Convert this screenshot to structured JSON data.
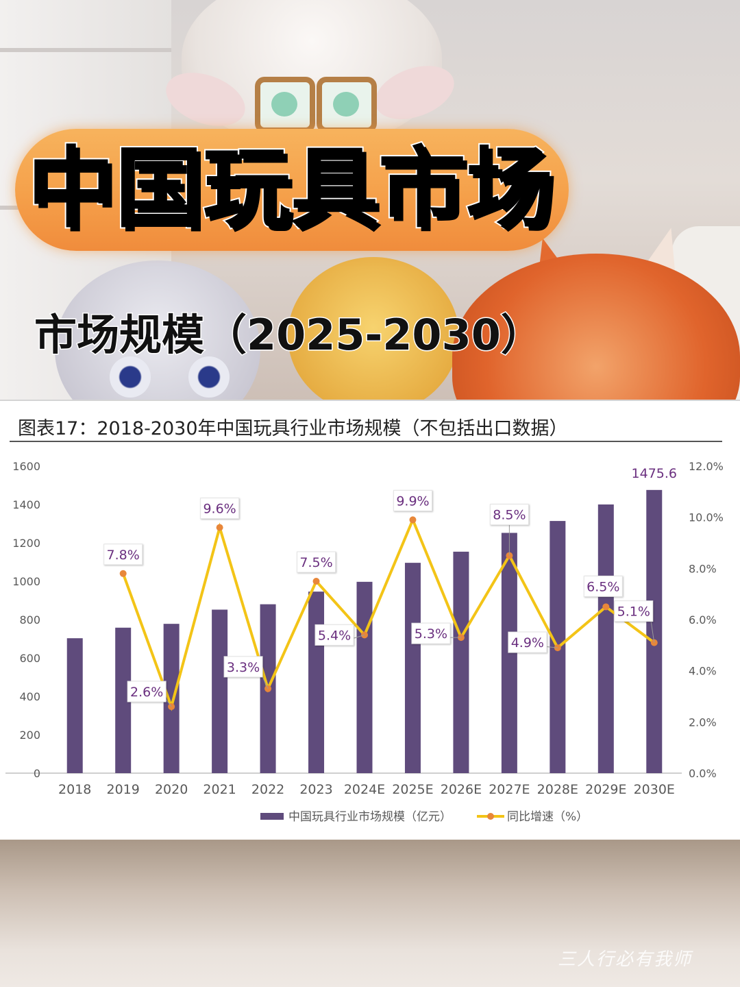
{
  "header": {
    "main_title": "中国玩具市场",
    "subtitle": "市场规模（2025-2030）"
  },
  "watermark": "三人行必有我师",
  "colors": {
    "bar": "#5f4b7c",
    "line": "#f3c417",
    "marker": "#e8873a",
    "label_text": "#6a2f7f",
    "title_pill": "#f5a04a"
  },
  "chart_data": {
    "type": "bar",
    "title": "图表17：2018-2030年中国玩具行业市场规模（不包括出口数据）",
    "categories": [
      "2018",
      "2019",
      "2020",
      "2021",
      "2022",
      "2023",
      "2024E",
      "2025E",
      "2026E",
      "2027E",
      "2028E",
      "2029E",
      "2030E"
    ],
    "series": [
      {
        "name": "中国玩具行业市场规模（亿元）",
        "type": "bar",
        "axis": "left",
        "values": [
          703,
          758,
          778,
          852,
          880,
          946,
          997,
          1096,
          1154,
          1252,
          1314,
          1400,
          1475.6
        ],
        "data_labels": [
          null,
          null,
          null,
          null,
          null,
          null,
          null,
          null,
          null,
          null,
          null,
          null,
          "1475.6"
        ]
      },
      {
        "name": "同比增速（%）",
        "type": "line",
        "axis": "right",
        "values": [
          null,
          7.8,
          2.6,
          9.6,
          3.3,
          7.5,
          5.4,
          9.9,
          5.3,
          8.5,
          4.9,
          6.5,
          5.1
        ],
        "data_labels": [
          null,
          "7.8%",
          "2.6%",
          "9.6%",
          "3.3%",
          "7.5%",
          "5.4%",
          "9.9%",
          "5.3%",
          "8.5%",
          "4.9%",
          "6.5%",
          "5.1%"
        ]
      }
    ],
    "y_left": {
      "min": 0,
      "max": 1600,
      "ticks": [
        "0",
        "200",
        "400",
        "600",
        "800",
        "1000",
        "1200",
        "1400",
        "1600"
      ]
    },
    "y_right": {
      "min": 0,
      "max": 12,
      "ticks": [
        "0.0%",
        "2.0%",
        "4.0%",
        "6.0%",
        "8.0%",
        "10.0%",
        "12.0%"
      ]
    },
    "grid": false,
    "legend_position": "bottom"
  }
}
